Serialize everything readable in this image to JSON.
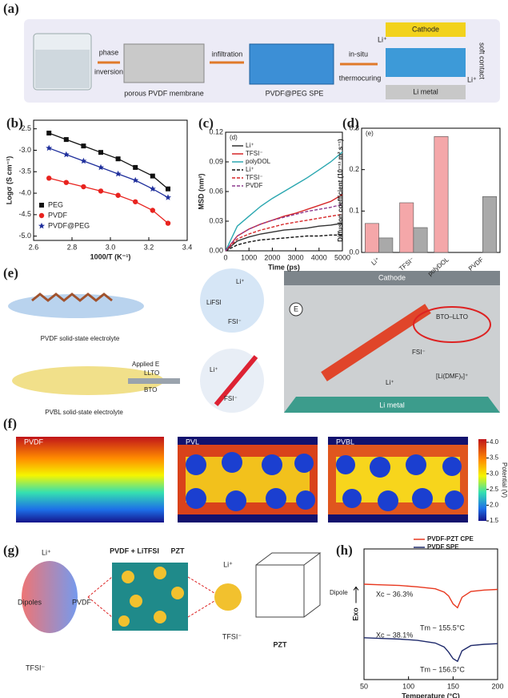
{
  "panels": {
    "a": {
      "label": "(a)",
      "texts": [
        "phase",
        "inversion",
        "porous PVDF membrane",
        "infiltration",
        "PVDF@PEG SPE",
        "in-situ",
        "thermocuring",
        "Cathode",
        "Li metal",
        "soft contact",
        "Li⁺",
        "Li⁺"
      ]
    },
    "e": {
      "label": "(e)",
      "texts": [
        "LiFSI",
        "Li⁺",
        "FSI⁻",
        "PVDF solid-state electrolyte",
        "Applied E",
        "LLTO",
        "BTO",
        "Li⁺",
        "FSI⁻",
        "PVBL solid-state electrolyte",
        "Cathode",
        "E",
        "BTO–LLTO",
        "FSI⁻",
        "Li⁺",
        "[Li(DMF)ₓ]⁺",
        "Li metal"
      ]
    },
    "f": {
      "label": "(f)",
      "maps": [
        "PVDF",
        "PVL",
        "PVBL"
      ],
      "colorbar": {
        "label": "Potential (V)",
        "lim": [
          1.5,
          4.1
        ],
        "ticks": [
          1.5,
          {
            "value": 2,
            "label": "2.0"
          },
          2.5,
          {
            "value": 3,
            "label": "3.0"
          },
          3.5,
          {
            "value": 4,
            "label": "4.0"
          }
        ]
      }
    },
    "g": {
      "label": "(g)",
      "texts": [
        "Li⁺",
        "Dipoles",
        "PVDF",
        "TFSI⁻",
        "PVDF + LiTFSI",
        "PZT",
        "Li⁺",
        "TFSI⁻",
        "PZT",
        "Dipole"
      ]
    }
  },
  "chart_data": [
    {
      "type": "scatter",
      "panel_label": "(b)",
      "x_label": "1000/T (K⁻¹)",
      "y_label": "Logσ (S cm⁻¹)",
      "x": [
        2.68,
        2.77,
        2.86,
        2.95,
        3.04,
        3.13,
        3.22,
        3.3
      ],
      "series": [
        {
          "name": "PEG",
          "color": "#111111",
          "marker": "square",
          "values": [
            -2.6,
            -2.75,
            -2.9,
            -3.05,
            -3.2,
            -3.4,
            -3.6,
            -3.9
          ]
        },
        {
          "name": "PVDF",
          "color": "#e8231f",
          "marker": "circle",
          "values": [
            -3.65,
            -3.75,
            -3.85,
            -3.95,
            -4.05,
            -4.2,
            -4.4,
            -4.7
          ]
        },
        {
          "name": "PVDF@PEG",
          "color": "#1f2f9c",
          "marker": "star",
          "values": [
            -2.95,
            -3.1,
            -3.25,
            -3.4,
            -3.55,
            -3.7,
            -3.9,
            -4.1
          ]
        }
      ],
      "xlim": [
        2.6,
        3.4
      ],
      "xticks": [
        2.6,
        2.8,
        {
          "value": 3,
          "label": "3.0"
        },
        3.2,
        3.4
      ],
      "ylim": [
        -5.1,
        -2.3
      ],
      "yticks": [
        -2.5,
        {
          "value": -3,
          "label": "-3.0"
        },
        -3.5,
        {
          "value": -4,
          "label": "-4.0"
        },
        -4.5,
        {
          "value": -5,
          "label": "-5.0"
        }
      ]
    },
    {
      "type": "line",
      "panel_label": "(c)",
      "inset_label": "(d)",
      "x_label": "Time (ps)",
      "y_label": "MSD (nm²)",
      "x": [
        0,
        500,
        1000,
        1500,
        2000,
        2500,
        3000,
        3500,
        4000,
        4500,
        5000
      ],
      "series": [
        {
          "name": "Li⁺",
          "color": "#333333",
          "dash": false,
          "values": [
            0,
            0.01,
            0.014,
            0.017,
            0.019,
            0.021,
            0.022,
            0.023,
            0.025,
            0.026,
            0.028
          ]
        },
        {
          "name": "TFSI⁻",
          "color": "#d62728",
          "dash": false,
          "values": [
            0,
            0.015,
            0.022,
            0.027,
            0.031,
            0.035,
            0.038,
            0.042,
            0.046,
            0.05,
            0.057
          ]
        },
        {
          "name": "polyDOL",
          "color": "#2aa7b0",
          "dash": false,
          "values": [
            0,
            0.025,
            0.035,
            0.045,
            0.053,
            0.06,
            0.067,
            0.074,
            0.082,
            0.09,
            0.1
          ]
        },
        {
          "name": "Li⁺",
          "color": "#111111",
          "dash": true,
          "values": [
            0,
            0.006,
            0.009,
            0.011,
            0.012,
            0.013,
            0.014,
            0.015,
            0.015,
            0.016,
            0.016
          ]
        },
        {
          "name": "TFSI⁻",
          "color": "#d62728",
          "dash": true,
          "values": [
            0,
            0.012,
            0.017,
            0.021,
            0.024,
            0.027,
            0.029,
            0.031,
            0.033,
            0.035,
            0.037
          ]
        },
        {
          "name": "PVDF",
          "color": "#8e3a8e",
          "dash": true,
          "values": [
            0,
            0.015,
            0.022,
            0.027,
            0.031,
            0.034,
            0.037,
            0.04,
            0.042,
            0.044,
            0.047
          ]
        }
      ],
      "xlim": [
        0,
        5000
      ],
      "xticks": [
        0,
        1000,
        2000,
        3000,
        4000,
        5000
      ],
      "ylim": [
        0,
        0.12
      ],
      "yticks": [
        {
          "value": 0,
          "label": "0.00"
        },
        0.03,
        0.06,
        0.09,
        0.12
      ]
    },
    {
      "type": "bar",
      "panel_label": "(d)",
      "inset_label": "(e)",
      "y_label": "Diffusion coefficient (10⁻¹¹ m² s⁻¹)",
      "categories": [
        "Li⁺",
        "TFSI⁻",
        "polyDOL",
        "PVDF"
      ],
      "series": [
        {
          "color": "#f4a7a9",
          "values": [
            0.07,
            0.12,
            0.28,
            null
          ]
        },
        {
          "color": "#a9a9a9",
          "values": [
            0.035,
            0.06,
            null,
            0.135
          ]
        }
      ],
      "ylim": [
        0,
        0.3
      ],
      "yticks": [
        {
          "value": 0,
          "label": "0.0"
        },
        0.1,
        0.2,
        0.3
      ]
    },
    {
      "type": "line",
      "panel_label": "(h)",
      "x_label": "Temperature (°C)",
      "y_label": "Exo",
      "x": [
        50,
        70,
        90,
        110,
        130,
        140,
        145,
        150,
        155,
        160,
        170,
        185,
        200
      ],
      "series": [
        {
          "name": "PVDF-PZT CPE",
          "color": "#e8381f",
          "dash": false,
          "values": [
            7.3,
            7.25,
            7.2,
            7.1,
            6.95,
            6.7,
            6.4,
            5.8,
            5.5,
            6.3,
            6.75,
            6.85,
            6.9
          ]
        },
        {
          "name": "PVDF SPE",
          "color": "#1f2a6b",
          "dash": false,
          "values": [
            3.2,
            3.15,
            3.1,
            3.0,
            2.8,
            2.5,
            2.1,
            1.6,
            1.4,
            2.2,
            2.6,
            2.7,
            2.75
          ]
        }
      ],
      "annotations": [
        "Xc ~ 36.3%",
        "Tm ~ 155.5°C",
        "Xc ~ 38.1%",
        "Tm ~ 156.5°C"
      ],
      "xlim": [
        50,
        200
      ],
      "xticks": [
        50,
        100,
        150,
        200
      ],
      "ylim": [
        0,
        10
      ]
    }
  ]
}
